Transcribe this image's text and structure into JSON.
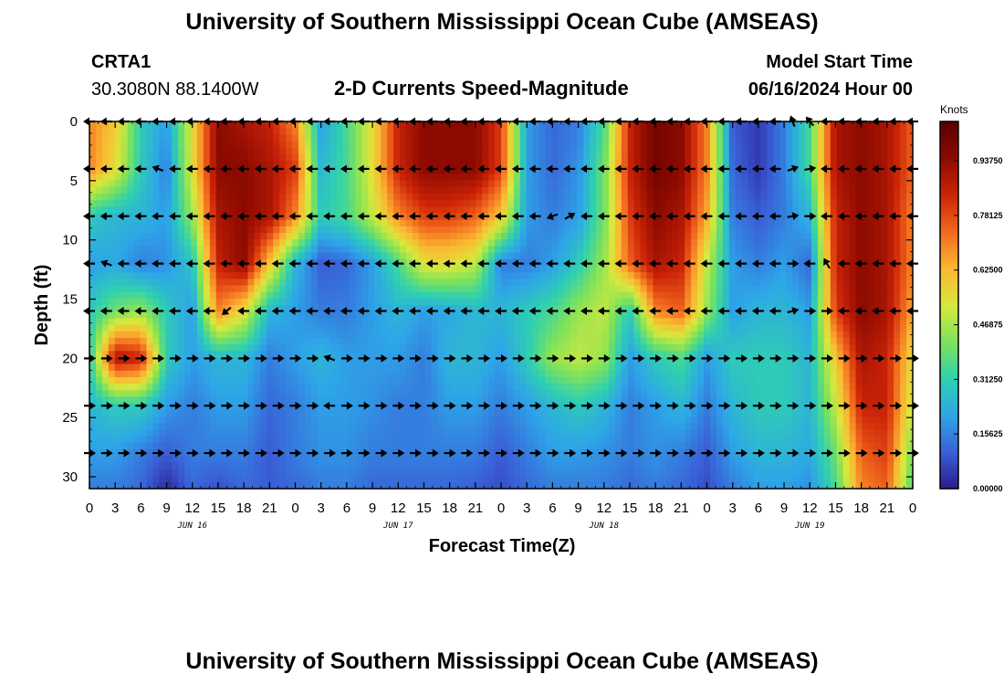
{
  "header": {
    "title": "University of Southern Mississippi Ocean Cube (AMSEAS)",
    "station": "CRTA1",
    "location": "30.3080N  88.1400W",
    "subtitle": "2-D Currents Speed-Magnitude",
    "model_start_label": "Model Start Time",
    "model_start_value": "06/16/2024 Hour 00"
  },
  "footer": {
    "title_repeat": "University of Southern Mississippi Ocean Cube (AMSEAS)"
  },
  "chart_data": {
    "type": "heatmap",
    "title": "2-D Currents Speed-Magnitude",
    "xlabel": "Forecast Time(Z)",
    "ylabel": "Depth (ft)",
    "x_range_hours": [
      0,
      96
    ],
    "y_range_ft": [
      0,
      31
    ],
    "x_tick_labels": [
      "0",
      "3",
      "6",
      "9",
      "12",
      "15",
      "18",
      "21",
      "0",
      "3",
      "6",
      "9",
      "12",
      "15",
      "18",
      "21",
      "0",
      "3",
      "6",
      "9",
      "12",
      "15",
      "18",
      "21",
      "0",
      "3",
      "6",
      "9",
      "12",
      "15",
      "18",
      "21",
      "0"
    ],
    "day_labels": [
      {
        "label": "JUN 16",
        "hour": 12
      },
      {
        "label": "JUN 17",
        "hour": 36
      },
      {
        "label": "JUN 18",
        "hour": 60
      },
      {
        "label": "JUN 19",
        "hour": 84
      }
    ],
    "y_ticks": [
      0,
      5,
      10,
      15,
      20,
      25,
      30
    ],
    "colorbar": {
      "unit": "Knots",
      "min": 0,
      "max": 1.05,
      "tick_values": [
        0.0,
        0.15625,
        0.3125,
        0.46875,
        0.625,
        0.78125,
        0.9375
      ],
      "tick_labels": [
        "0.00000",
        "0.15625",
        "0.31250",
        "0.46875",
        "0.62500",
        "0.78125",
        "0.93750"
      ],
      "colors": [
        "#2b1a8f",
        "#3a5fd6",
        "#2ea5e8",
        "#2fd0b0",
        "#7ee25a",
        "#d8e83c",
        "#fbb832",
        "#f26a1e",
        "#cc2408",
        "#8e0b00",
        "#5a0000"
      ]
    },
    "speed_grid": {
      "depths_ft": [
        0,
        4,
        8,
        12,
        16,
        20,
        24,
        28,
        31
      ],
      "hours": [
        0,
        3,
        6,
        9,
        12,
        15,
        18,
        21,
        24,
        27,
        30,
        33,
        36,
        39,
        42,
        45,
        48,
        51,
        54,
        57,
        60,
        63,
        66,
        69,
        72,
        75,
        78,
        81,
        84,
        87,
        90,
        93,
        96
      ],
      "values_knots": [
        [
          0.7,
          0.6,
          0.3,
          0.2,
          0.55,
          0.95,
          0.9,
          0.85,
          0.7,
          0.2,
          0.35,
          0.55,
          0.85,
          0.95,
          0.95,
          0.95,
          0.8,
          0.2,
          0.12,
          0.15,
          0.35,
          0.85,
          1.0,
          0.95,
          0.7,
          0.1,
          0.05,
          0.15,
          0.35,
          0.9,
          0.95,
          0.9,
          0.75
        ],
        [
          0.7,
          0.55,
          0.3,
          0.15,
          0.55,
          0.95,
          0.95,
          0.9,
          0.8,
          0.25,
          0.35,
          0.55,
          0.85,
          0.95,
          0.95,
          0.95,
          0.8,
          0.2,
          0.12,
          0.18,
          0.4,
          0.85,
          1.0,
          0.95,
          0.7,
          0.12,
          0.05,
          0.15,
          0.35,
          0.9,
          0.95,
          0.9,
          0.75
        ],
        [
          0.3,
          0.25,
          0.25,
          0.2,
          0.45,
          0.9,
          0.95,
          0.9,
          0.7,
          0.3,
          0.35,
          0.5,
          0.7,
          0.8,
          0.8,
          0.75,
          0.6,
          0.2,
          0.15,
          0.2,
          0.4,
          0.8,
          0.95,
          0.9,
          0.65,
          0.15,
          0.1,
          0.15,
          0.25,
          0.85,
          0.95,
          0.9,
          0.7
        ],
        [
          0.2,
          0.22,
          0.15,
          0.18,
          0.28,
          0.85,
          0.95,
          0.6,
          0.25,
          0.1,
          0.12,
          0.2,
          0.35,
          0.55,
          0.55,
          0.5,
          0.15,
          0.15,
          0.2,
          0.3,
          0.45,
          0.75,
          0.9,
          0.85,
          0.5,
          0.2,
          0.15,
          0.2,
          0.12,
          0.85,
          0.95,
          0.9,
          0.7
        ],
        [
          0.3,
          0.4,
          0.45,
          0.3,
          0.2,
          0.7,
          0.55,
          0.25,
          0.2,
          0.15,
          0.15,
          0.2,
          0.25,
          0.2,
          0.22,
          0.25,
          0.25,
          0.3,
          0.35,
          0.45,
          0.5,
          0.3,
          0.7,
          0.75,
          0.45,
          0.2,
          0.25,
          0.25,
          0.2,
          0.8,
          0.95,
          0.9,
          0.65
        ],
        [
          0.3,
          0.9,
          0.85,
          0.3,
          0.2,
          0.25,
          0.25,
          0.15,
          0.2,
          0.25,
          0.2,
          0.2,
          0.2,
          0.15,
          0.25,
          0.25,
          0.2,
          0.3,
          0.45,
          0.5,
          0.45,
          0.2,
          0.3,
          0.35,
          0.2,
          0.3,
          0.3,
          0.3,
          0.25,
          0.6,
          0.9,
          0.85,
          0.55
        ],
        [
          0.25,
          0.3,
          0.3,
          0.2,
          0.15,
          0.2,
          0.2,
          0.12,
          0.15,
          0.2,
          0.2,
          0.18,
          0.15,
          0.15,
          0.2,
          0.2,
          0.15,
          0.2,
          0.25,
          0.3,
          0.25,
          0.15,
          0.2,
          0.25,
          0.15,
          0.25,
          0.3,
          0.3,
          0.25,
          0.5,
          0.85,
          0.85,
          0.5
        ],
        [
          0.2,
          0.2,
          0.15,
          0.1,
          0.15,
          0.15,
          0.15,
          0.1,
          0.15,
          0.18,
          0.18,
          0.15,
          0.15,
          0.15,
          0.15,
          0.15,
          0.1,
          0.15,
          0.2,
          0.2,
          0.18,
          0.15,
          0.18,
          0.15,
          0.1,
          0.2,
          0.25,
          0.25,
          0.22,
          0.4,
          0.75,
          0.8,
          0.4
        ],
        [
          0.15,
          0.15,
          0.12,
          0.02,
          0.12,
          0.08,
          0.12,
          0.1,
          0.12,
          0.15,
          0.15,
          0.12,
          0.12,
          0.12,
          0.12,
          0.1,
          0.08,
          0.12,
          0.15,
          0.15,
          0.15,
          0.12,
          0.15,
          0.12,
          0.08,
          0.15,
          0.2,
          0.2,
          0.18,
          0.35,
          0.7,
          0.75,
          0.35
        ]
      ]
    },
    "arrows": {
      "depths_ft": [
        0,
        4,
        8,
        12,
        16,
        20,
        24,
        28
      ],
      "hours": [
        0,
        2,
        4,
        6,
        8,
        10,
        12,
        14,
        16,
        18,
        20,
        22,
        24,
        26,
        28,
        30,
        32,
        34,
        36,
        38,
        40,
        42,
        44,
        46,
        48,
        50,
        52,
        54,
        56,
        58,
        60,
        62,
        64,
        66,
        68,
        70,
        72,
        74,
        76,
        78,
        80,
        82,
        84,
        86,
        88,
        90,
        92,
        94,
        96
      ],
      "direction_deg": [
        [
          180,
          180,
          180,
          180,
          180,
          180,
          180,
          180,
          180,
          180,
          180,
          180,
          180,
          180,
          180,
          180,
          180,
          180,
          180,
          180,
          180,
          180,
          180,
          180,
          180,
          180,
          180,
          180,
          180,
          180,
          180,
          180,
          180,
          180,
          180,
          180,
          180,
          180,
          180,
          180,
          180,
          250,
          230,
          180,
          180,
          180,
          180,
          180,
          180
        ],
        [
          180,
          180,
          180,
          180,
          200,
          180,
          180,
          180,
          180,
          180,
          180,
          180,
          180,
          180,
          180,
          180,
          180,
          180,
          180,
          180,
          180,
          180,
          180,
          180,
          180,
          180,
          180,
          180,
          180,
          180,
          180,
          180,
          180,
          180,
          180,
          180,
          180,
          180,
          180,
          180,
          180,
          -20,
          -10,
          180,
          180,
          180,
          180,
          180,
          180
        ],
        [
          180,
          180,
          180,
          180,
          180,
          180,
          180,
          180,
          180,
          180,
          180,
          180,
          180,
          180,
          180,
          180,
          180,
          180,
          180,
          180,
          180,
          180,
          180,
          180,
          180,
          180,
          180,
          160,
          -30,
          180,
          180,
          180,
          180,
          180,
          180,
          180,
          180,
          180,
          180,
          180,
          180,
          -10,
          0,
          180,
          180,
          180,
          180,
          180,
          180
        ],
        [
          180,
          200,
          180,
          180,
          180,
          180,
          180,
          180,
          180,
          180,
          180,
          180,
          180,
          180,
          180,
          180,
          180,
          180,
          180,
          180,
          180,
          180,
          180,
          180,
          180,
          180,
          180,
          180,
          180,
          180,
          180,
          180,
          180,
          180,
          180,
          180,
          180,
          180,
          180,
          180,
          180,
          0,
          180,
          240,
          180,
          180,
          180,
          180,
          180
        ],
        [
          180,
          180,
          180,
          180,
          180,
          180,
          180,
          180,
          140,
          180,
          180,
          180,
          180,
          180,
          180,
          180,
          180,
          180,
          180,
          180,
          180,
          180,
          180,
          180,
          180,
          180,
          180,
          180,
          180,
          180,
          180,
          180,
          180,
          180,
          180,
          180,
          180,
          180,
          180,
          180,
          180,
          -15,
          0,
          0,
          180,
          180,
          180,
          180,
          180
        ],
        [
          0,
          0,
          0,
          0,
          0,
          0,
          0,
          0,
          0,
          0,
          0,
          0,
          0,
          0,
          200,
          0,
          0,
          0,
          0,
          0,
          0,
          0,
          0,
          0,
          0,
          0,
          0,
          0,
          0,
          0,
          0,
          0,
          0,
          0,
          0,
          0,
          0,
          0,
          0,
          0,
          0,
          0,
          0,
          0,
          0,
          0,
          0,
          0,
          0
        ],
        [
          0,
          0,
          0,
          0,
          0,
          0,
          0,
          0,
          0,
          0,
          0,
          0,
          0,
          0,
          180,
          0,
          0,
          0,
          0,
          0,
          0,
          0,
          0,
          0,
          0,
          0,
          0,
          0,
          0,
          0,
          0,
          0,
          0,
          0,
          0,
          0,
          0,
          0,
          0,
          0,
          0,
          0,
          0,
          0,
          0,
          0,
          0,
          0,
          0
        ],
        [
          0,
          0,
          0,
          0,
          0,
          0,
          0,
          0,
          0,
          0,
          0,
          0,
          0,
          0,
          0,
          0,
          0,
          0,
          0,
          0,
          0,
          0,
          0,
          0,
          0,
          0,
          0,
          0,
          0,
          0,
          0,
          0,
          0,
          0,
          0,
          0,
          0,
          0,
          0,
          0,
          0,
          0,
          0,
          0,
          0,
          0,
          0,
          0,
          0
        ]
      ]
    }
  }
}
